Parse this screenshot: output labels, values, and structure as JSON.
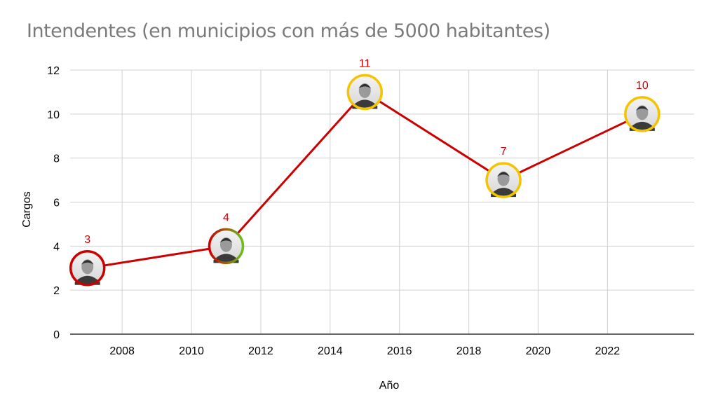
{
  "chart_data": {
    "type": "line",
    "title": "Intendentes  (en municipios con más de 5000 habitantes)",
    "xlabel": "Año",
    "ylabel": "Cargos",
    "xlim": [
      2006.5,
      2024.5
    ],
    "ylim": [
      0,
      12
    ],
    "x_ticks": [
      2008,
      2010,
      2012,
      2014,
      2016,
      2018,
      2020,
      2022
    ],
    "y_ticks": [
      0,
      2,
      4,
      6,
      8,
      10,
      12
    ],
    "grid": true,
    "legend": "none",
    "series": [
      {
        "color": "#cc0000",
        "points": [
          {
            "x": 2007,
            "y": 3,
            "label": "3",
            "marker": "portrait",
            "ring": "#cc0000"
          },
          {
            "x": 2011,
            "y": 4,
            "label": "4",
            "marker": "portrait",
            "ring": "gradient-red-green"
          },
          {
            "x": 2015,
            "y": 11,
            "label": "11",
            "marker": "portrait",
            "ring": "#f5c400"
          },
          {
            "x": 2019,
            "y": 7,
            "label": "7",
            "marker": "portrait",
            "ring": "#f5c400"
          },
          {
            "x": 2023,
            "y": 10,
            "label": "10",
            "marker": "portrait",
            "ring": "#f5c400"
          }
        ]
      }
    ]
  }
}
